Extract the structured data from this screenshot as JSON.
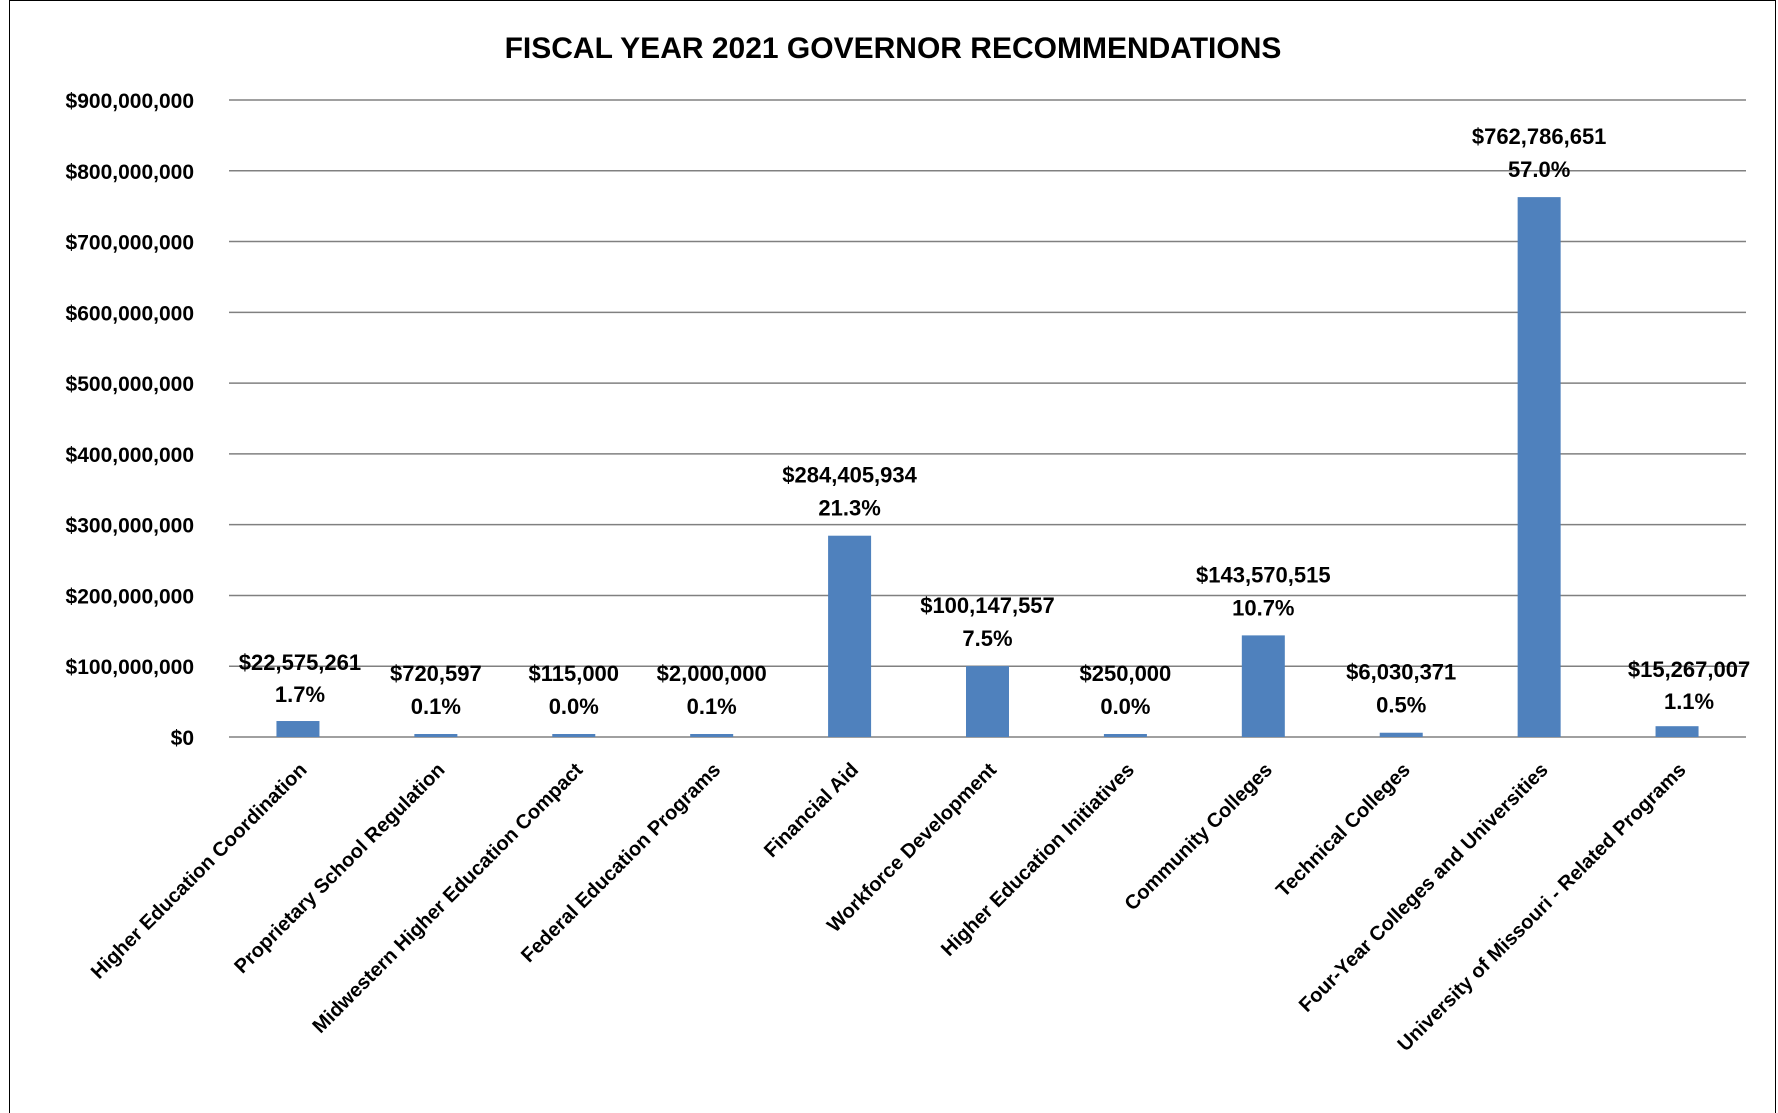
{
  "chart_data": {
    "type": "bar",
    "title": "FISCAL YEAR 2021  GOVERNOR RECOMMENDATIONS",
    "xlabel": "",
    "ylabel": "",
    "ylim": [
      0,
      900000000
    ],
    "grid": true,
    "legend": "none",
    "bar_color": "#4F81BD",
    "gridline_color": "#808080",
    "y_ticks": [
      {
        "value": 0,
        "label": "$0"
      },
      {
        "value": 100000000,
        "label": "$100,000,000"
      },
      {
        "value": 200000000,
        "label": "$200,000,000"
      },
      {
        "value": 300000000,
        "label": "$300,000,000"
      },
      {
        "value": 400000000,
        "label": "$400,000,000"
      },
      {
        "value": 500000000,
        "label": "$500,000,000"
      },
      {
        "value": 600000000,
        "label": "$600,000,000"
      },
      {
        "value": 700000000,
        "label": "$700,000,000"
      },
      {
        "value": 800000000,
        "label": "$800,000,000"
      },
      {
        "value": 900000000,
        "label": "$900,000,000"
      }
    ],
    "categories": [
      "Higher Education Coordination",
      "Proprietary School Regulation",
      "Midwestern Higher Education Compact",
      "Federal Education Programs",
      "Financial Aid",
      "Workforce Development",
      "Higher Education Initiatives",
      "Community Colleges",
      "Technical Colleges",
      "Four-Year Colleges and Universities",
      "University of Missouri - Related Programs"
    ],
    "values": [
      22575261,
      720597,
      115000,
      2000000,
      284405934,
      100147557,
      250000,
      143570515,
      6030371,
      762786651,
      15267007
    ],
    "value_labels": [
      "$22,575,261",
      "$720,597",
      "$115,000",
      "$2,000,000",
      "$284,405,934",
      "$100,147,557",
      "$250,000",
      "$143,570,515",
      "$6,030,371",
      "$762,786,651",
      "$15,267,007"
    ],
    "percent_labels": [
      "1.7%",
      "0.1%",
      "0.0%",
      "0.1%",
      "21.3%",
      "7.5%",
      "0.0%",
      "10.7%",
      "0.5%",
      "57.0%",
      "1.1%"
    ]
  }
}
